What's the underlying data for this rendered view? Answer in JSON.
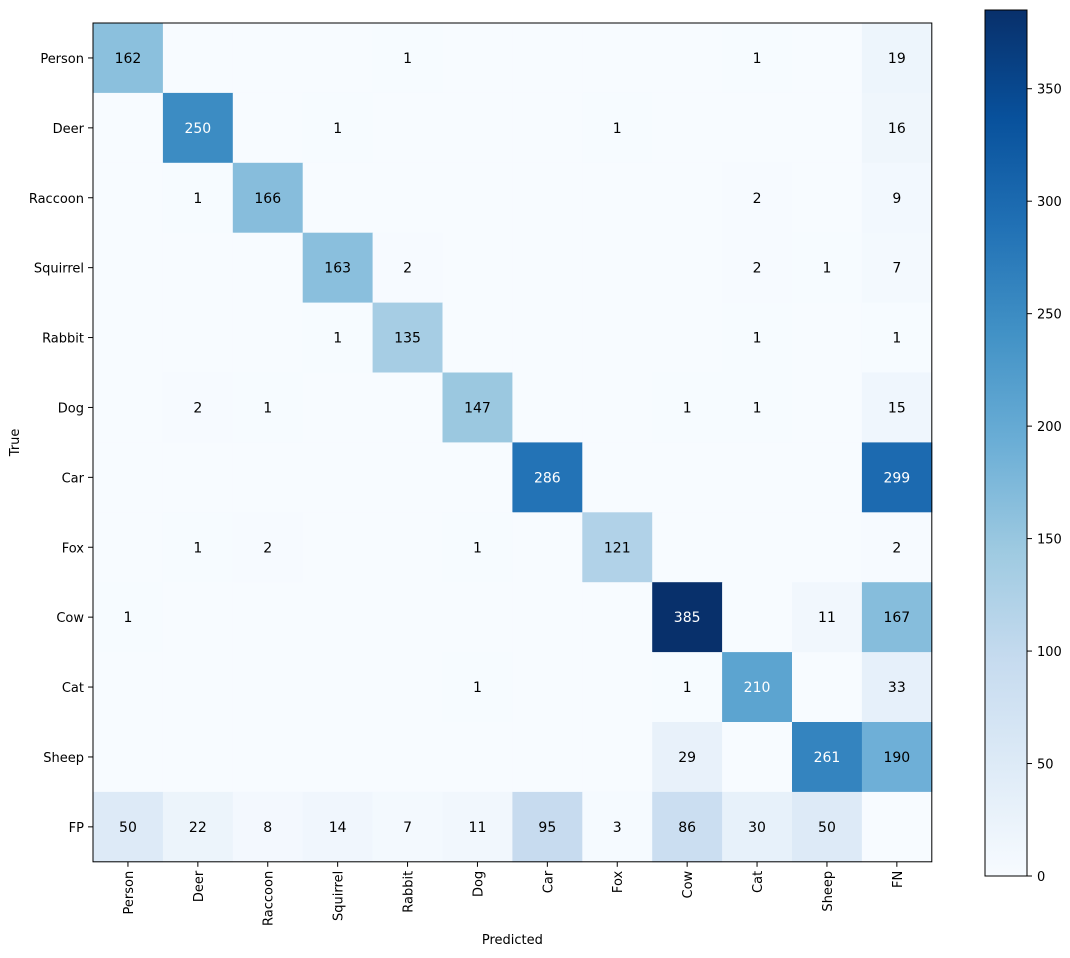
{
  "chart_data": {
    "type": "heatmap",
    "title": "",
    "xlabel": "Predicted",
    "ylabel": "True",
    "x_categories": [
      "Person",
      "Deer",
      "Raccoon",
      "Squirrel",
      "Rabbit",
      "Dog",
      "Car",
      "Fox",
      "Cow",
      "Cat",
      "Sheep",
      "FN"
    ],
    "y_categories": [
      "Person",
      "Deer",
      "Raccoon",
      "Squirrel",
      "Rabbit",
      "Dog",
      "Car",
      "Fox",
      "Cow",
      "Cat",
      "Sheep",
      "FP"
    ],
    "values": [
      [
        162,
        0,
        0,
        0,
        1,
        0,
        0,
        0,
        0,
        1,
        0,
        19
      ],
      [
        0,
        250,
        0,
        1,
        0,
        0,
        0,
        1,
        0,
        0,
        0,
        16
      ],
      [
        0,
        1,
        166,
        0,
        0,
        0,
        0,
        0,
        0,
        2,
        0,
        9
      ],
      [
        0,
        0,
        0,
        163,
        2,
        0,
        0,
        0,
        0,
        2,
        1,
        7
      ],
      [
        0,
        0,
        0,
        1,
        135,
        0,
        0,
        0,
        0,
        1,
        0,
        1
      ],
      [
        0,
        2,
        1,
        0,
        0,
        147,
        0,
        0,
        1,
        1,
        0,
        15
      ],
      [
        0,
        0,
        0,
        0,
        0,
        0,
        286,
        0,
        0,
        0,
        0,
        299
      ],
      [
        0,
        1,
        2,
        0,
        0,
        1,
        0,
        121,
        0,
        0,
        0,
        2
      ],
      [
        1,
        0,
        0,
        0,
        0,
        0,
        0,
        0,
        385,
        0,
        11,
        167
      ],
      [
        0,
        0,
        0,
        0,
        0,
        1,
        0,
        0,
        1,
        210,
        0,
        33
      ],
      [
        0,
        0,
        0,
        0,
        0,
        0,
        0,
        0,
        29,
        0,
        261,
        190
      ],
      [
        50,
        22,
        8,
        14,
        7,
        11,
        95,
        3,
        86,
        30,
        50,
        0
      ]
    ],
    "colormap": "Blues",
    "colorbar": {
      "min": 0,
      "max": 385,
      "ticks": [
        0,
        50,
        100,
        150,
        200,
        250,
        300,
        350
      ]
    },
    "grid": false,
    "colors": {
      "low": "#f7fbff",
      "high": "#08306b"
    }
  }
}
